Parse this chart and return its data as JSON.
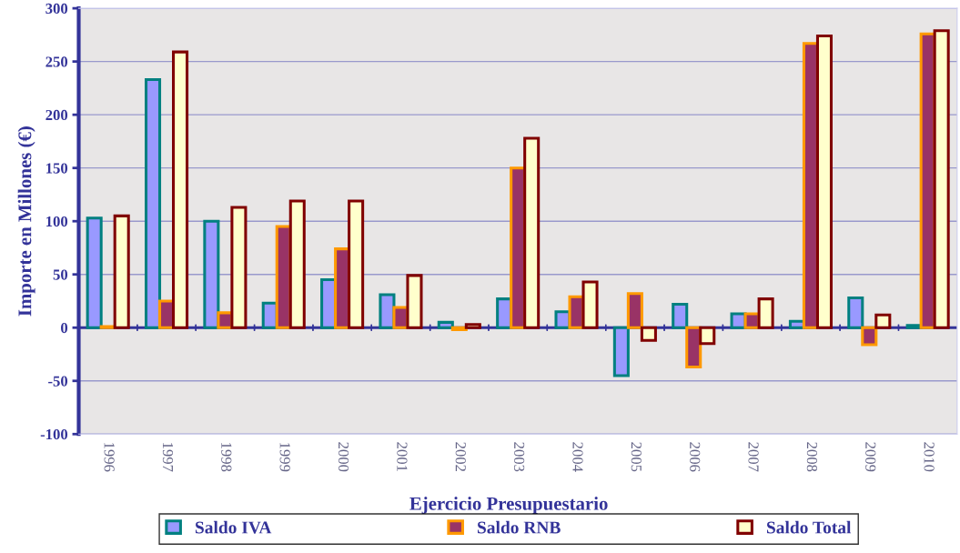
{
  "chart_data": {
    "type": "bar",
    "xlabel": "Ejercicio Presupuestario",
    "ylabel": "Importe en Millones (€)",
    "categories": [
      "1996",
      "1997",
      "1998",
      "1999",
      "2000",
      "2001",
      "2002",
      "2003",
      "2004",
      "2005",
      "2006",
      "2007",
      "2008",
      "2009",
      "2010"
    ],
    "series": [
      {
        "name": "Saldo IVA",
        "color": "#9999ff",
        "values": [
          103,
          233,
          100,
          23,
          45,
          31,
          5,
          27,
          15,
          -45,
          22,
          13,
          6,
          28,
          2
        ]
      },
      {
        "name": "Saldo RNB",
        "color": "#993366",
        "values": [
          1,
          25,
          14,
          95,
          74,
          19,
          -2,
          150,
          29,
          32,
          -37,
          13,
          267,
          -16,
          276
        ]
      },
      {
        "name": "Saldo Total",
        "color": "#ffffcc",
        "values": [
          105,
          259,
          113,
          119,
          119,
          49,
          3,
          178,
          43,
          -12,
          -15,
          27,
          274,
          12,
          279
        ]
      }
    ],
    "ylim": [
      -100,
      300
    ],
    "yticks": [
      -100,
      -50,
      0,
      50,
      100,
      150,
      200,
      250,
      300
    ],
    "ref_lines": [
      {
        "axis": "y",
        "value": 0,
        "color": "#333399"
      }
    ],
    "grid": "y",
    "legend": "bottom"
  }
}
